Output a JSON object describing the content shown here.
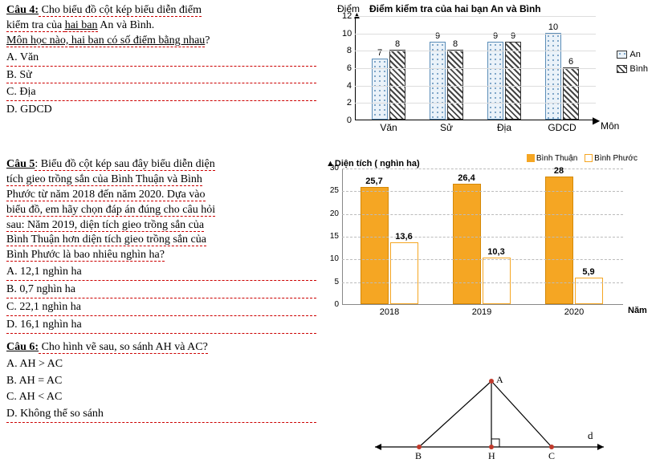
{
  "q4": {
    "label": "Câu 4:",
    "text_l1": " Cho biểu đồ cột kép biểu diễn điểm",
    "text_l2_a": "kiểm tra của ",
    "text_l2_b": "hai ban",
    "text_l2_c": " An và Bình.",
    "text_l3_a": "Môn học nào, ",
    "text_l3_b": "hai ban có số điểm bằng nhau",
    "text_l3_c": "?",
    "opts": [
      "A. Văn",
      "B. Sử",
      "C. Địa",
      "D. GDCD"
    ]
  },
  "chart1": {
    "type": "bar",
    "y_axis_label": "Điểm",
    "title": "Điểm kiểm tra của hai bạn An  và Bình",
    "x_axis_label": "Môn",
    "ylim": [
      0,
      12
    ],
    "ytick_step": 2,
    "categories": [
      "Văn",
      "Sử",
      "Địa",
      "GDCD"
    ],
    "series": [
      {
        "name": "An",
        "values": [
          7,
          9,
          9,
          10
        ],
        "color": "#eaf2f9",
        "pattern": "dots",
        "border": "#5b8db8"
      },
      {
        "name": "Bình",
        "values": [
          8,
          8,
          9,
          6
        ],
        "color": "#ffffff",
        "pattern": "diag",
        "border": "#333333"
      }
    ],
    "legend_labels": [
      "An",
      "Bình"
    ],
    "grid_color": "#dddddd",
    "label_fontsize": 12
  },
  "q5": {
    "label": "Câu 5",
    "text_l1": ": Biểu đồ cột kép sau đây biểu diễn diện",
    "text_l2": "tích gieo trồng sắn của Bình Thuận và Bình",
    "text_l3": "Phước từ năm 2018 đến năm 2020. Dựa vào",
    "text_l4": "biểu đồ, em hãy chọn đáp án đúng cho câu hỏi",
    "text_l5": "sau: Năm 2019, diện tích gieo trồng sắn của",
    "text_l6": "Bình Thuận hơn diện tích gieo trồng sắn của",
    "text_l7": "Bình Phước là bao nhiêu nghìn ha?",
    "opts": [
      "A. 12,1 nghìn ha",
      "B. 0,7 nghìn ha",
      "C. 22,1 nghìn ha",
      "D. 16,1 nghìn ha"
    ]
  },
  "chart2": {
    "type": "bar",
    "title": "Diện tích ( nghìn ha)",
    "x_axis_label": "Năm",
    "ylim": [
      0,
      30
    ],
    "ytick_step": 5,
    "categories": [
      "2018",
      "2019",
      "2020"
    ],
    "series": [
      {
        "name": "Bình Thuận",
        "values": [
          25.7,
          26.4,
          28
        ],
        "labels": [
          "25,7",
          "26,4",
          "28"
        ],
        "color": "#f5a623"
      },
      {
        "name": "Bình Phước",
        "values": [
          13.6,
          10.3,
          5.9
        ],
        "labels": [
          "13,6",
          "10,3",
          "5,9"
        ],
        "color": "#ffffff",
        "border": "#f5a623"
      }
    ],
    "legend_labels": [
      "Bình Thuận",
      "Bình Phước"
    ],
    "label_fontsize": 11
  },
  "q6": {
    "label": "Câu 6:",
    "text": " Cho hình vẽ sau, so sánh AH và AC?",
    "opts": [
      "A. AH > AC",
      "B. AH = AC",
      "C. AH < AC",
      "D. Không thể so sánh"
    ]
  },
  "diag6": {
    "points": {
      "A": "A",
      "B": "B",
      "H": "H",
      "C": "C"
    },
    "line_label": "d",
    "colors": {
      "vertex": "#c0392b",
      "line": "#000"
    }
  }
}
